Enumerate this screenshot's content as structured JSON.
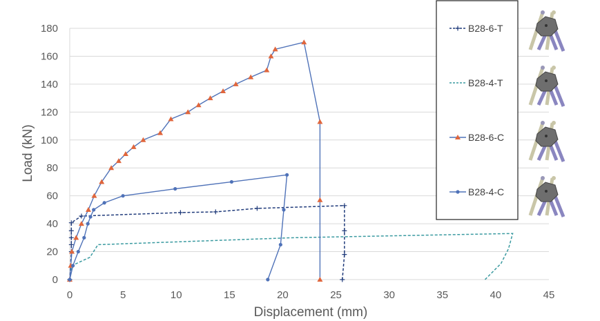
{
  "chart_data": {
    "type": "line",
    "xlabel": "Displacement (mm)",
    "ylabel": "Load (kN)",
    "xlim": [
      0,
      45
    ],
    "ylim": [
      0,
      180
    ],
    "xticks": [
      0,
      5,
      10,
      15,
      20,
      25,
      30,
      35,
      40,
      45
    ],
    "yticks": [
      0,
      20,
      40,
      60,
      80,
      100,
      120,
      140,
      160,
      180
    ],
    "grid": "horizontal",
    "legend_position": "right",
    "series": [
      {
        "name": "B28-6-T",
        "color": "#1f3a7a",
        "dash": true,
        "marker": "plus",
        "x": [
          0,
          0.15,
          0.15,
          0.15,
          0.15,
          0.15,
          1.1,
          10.4,
          13.7,
          17.6,
          25.8,
          25.8,
          25.8,
          25.6
        ],
        "y": [
          0,
          20,
          25,
          30,
          35,
          40.7,
          45.5,
          48,
          48.5,
          51,
          53,
          35,
          18,
          0
        ]
      },
      {
        "name": "B28-4-T",
        "color": "#3a9aa0",
        "dash": true,
        "marker": "none",
        "x": [
          0,
          0.2,
          1.9,
          2.65,
          21,
          41.6,
          41.2,
          40.5,
          39
        ],
        "y": [
          0,
          10,
          16,
          25,
          30,
          33,
          22,
          11.5,
          0
        ]
      },
      {
        "name": "B28-6-C",
        "color": "#4f72b8",
        "markerColor": "#e0663c",
        "dash": false,
        "marker": "triangle",
        "x": [
          0,
          0.1,
          0.2,
          0.6,
          1.1,
          1.75,
          2.3,
          3,
          3.9,
          4.6,
          5.25,
          6,
          6.9,
          8.5,
          9.5,
          11.1,
          12.1,
          13.2,
          14.4,
          15.6,
          17,
          18.5,
          18.9,
          19.3,
          22.0,
          23.5,
          23.5,
          23.5
        ],
        "y": [
          0,
          10,
          20,
          30,
          40,
          50,
          60,
          70,
          80,
          85,
          90,
          95,
          100,
          105,
          115,
          120,
          125,
          130,
          135,
          140,
          145,
          150,
          160,
          165,
          170,
          113,
          57,
          0
        ]
      },
      {
        "name": "B28-4-C",
        "color": "#4f72b8",
        "dash": false,
        "marker": "circle",
        "x": [
          0,
          0.3,
          0.8,
          1.35,
          1.7,
          1.95,
          2.25,
          3.25,
          5,
          9.9,
          15.2,
          20.4,
          20.1,
          19.8,
          18.6
        ],
        "y": [
          0,
          10,
          20,
          30,
          40,
          45,
          50,
          55,
          60,
          65,
          70,
          75,
          50,
          25,
          0
        ]
      }
    ]
  },
  "thumbnails": [
    "joint-node-icon",
    "joint-node-icon",
    "joint-node-icon",
    "joint-node-icon"
  ]
}
